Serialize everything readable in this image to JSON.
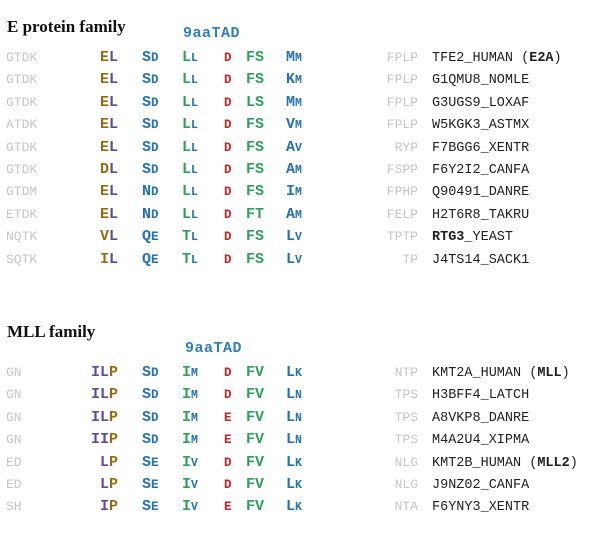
{
  "palette": {
    "gray": "#c6c6c6",
    "blue": "#2272b4",
    "green": "#2ea05a",
    "red": "#cc2222",
    "brown": "#9b6a0e",
    "purple": "#5f4a9e",
    "label_blue": "#2f7fbe",
    "name_black": "#1f1f1f"
  },
  "sections": [
    {
      "id": "e",
      "title": "E protein family",
      "tad_label": "9aaTAD",
      "rows": [
        {
          "flank_left": "GTDK",
          "pre": [
            [
              "E",
              "brown"
            ],
            [
              "L",
              "purple"
            ]
          ],
          "p12": "SD",
          "p34": "LL",
          "p5": "D",
          "p67": "FS",
          "p89": "MM",
          "flank_right": "FPLP",
          "name": [
            {
              "text": "TFE2_HUMAN (",
              "bold": false
            },
            {
              "text": "E2A",
              "bold": true
            },
            {
              "text": ")",
              "bold": false
            }
          ]
        },
        {
          "flank_left": "GTDK",
          "pre": [
            [
              "E",
              "brown"
            ],
            [
              "L",
              "purple"
            ]
          ],
          "p12": "SD",
          "p34": "LL",
          "p5": "D",
          "p67": "FS",
          "p89": "KM",
          "flank_right": "FPLP",
          "name": [
            {
              "text": "G1QMU8_NOMLE",
              "bold": false
            }
          ]
        },
        {
          "flank_left": "GTDK",
          "pre": [
            [
              "E",
              "brown"
            ],
            [
              "L",
              "purple"
            ]
          ],
          "p12": "SD",
          "p34": "LL",
          "p5": "D",
          "p67": "LS",
          "p89": "MM",
          "flank_right": "FPLP",
          "name": [
            {
              "text": "G3UGS9_LOXAF",
              "bold": false
            }
          ]
        },
        {
          "flank_left": "ATDK",
          "pre": [
            [
              "E",
              "brown"
            ],
            [
              "L",
              "purple"
            ]
          ],
          "p12": "SD",
          "p34": "LL",
          "p5": "D",
          "p67": "FS",
          "p89": "VM",
          "flank_right": "FPLP",
          "name": [
            {
              "text": "W5KGK3_ASTMX",
              "bold": false
            }
          ]
        },
        {
          "flank_left": "GTDK",
          "pre": [
            [
              "E",
              "brown"
            ],
            [
              "L",
              "purple"
            ]
          ],
          "p12": "SD",
          "p34": "LL",
          "p5": "D",
          "p67": "FS",
          "p89": "AV",
          "flank_right": "RYP",
          "name": [
            {
              "text": "F7BGG6_XENTR",
              "bold": false
            }
          ]
        },
        {
          "flank_left": "GTDK",
          "pre": [
            [
              "D",
              "brown"
            ],
            [
              "L",
              "purple"
            ]
          ],
          "p12": "SD",
          "p34": "LL",
          "p5": "D",
          "p67": "FS",
          "p89": "AM",
          "flank_right": "FSPP",
          "name": [
            {
              "text": "F6Y2I2_CANFA",
              "bold": false
            }
          ]
        },
        {
          "flank_left": "GTDM",
          "pre": [
            [
              "E",
              "brown"
            ],
            [
              "L",
              "purple"
            ]
          ],
          "p12": "ND",
          "p34": "LL",
          "p5": "D",
          "p67": "FS",
          "p89": "IM",
          "flank_right": "FPHP",
          "name": [
            {
              "text": "Q90491_DANRE",
              "bold": false
            }
          ]
        },
        {
          "flank_left": "ETDK",
          "pre": [
            [
              "E",
              "brown"
            ],
            [
              "L",
              "purple"
            ]
          ],
          "p12": "ND",
          "p34": "LL",
          "p5": "D",
          "p67": "FT",
          "p89": "AM",
          "flank_right": "FELP",
          "name": [
            {
              "text": "H2T6R8_TAKRU",
              "bold": false
            }
          ]
        },
        {
          "flank_left": "NQTK",
          "pre": [
            [
              "V",
              "brown"
            ],
            [
              "L",
              "purple"
            ]
          ],
          "p12": "QE",
          "p34": "TL",
          "p5": "D",
          "p67": "FS",
          "p89": "LV",
          "flank_right": "TPTP",
          "name": [
            {
              "text": "RTG3",
              "bold": true
            },
            {
              "text": "_YEAST",
              "bold": false
            }
          ]
        },
        {
          "flank_left": "SQTK",
          "pre": [
            [
              "I",
              "brown"
            ],
            [
              "L",
              "purple"
            ]
          ],
          "p12": "QE",
          "p34": "TL",
          "p5": "D",
          "p67": "FS",
          "p89": "LV",
          "flank_right": "TP",
          "name": [
            {
              "text": "J4TS14_SACK1",
              "bold": false
            }
          ]
        }
      ]
    },
    {
      "id": "mll",
      "title": "MLL family",
      "tad_label": "9aaTAD",
      "rows": [
        {
          "flank_left": "GN",
          "pre": [
            [
              "I",
              "purple"
            ],
            [
              "L",
              "purple"
            ],
            [
              "P",
              "brown"
            ]
          ],
          "p12": "SD",
          "p34": "IM",
          "p5": "D",
          "p67": "FV",
          "p89": "LK",
          "flank_right": "NTP",
          "name": [
            {
              "text": "KMT2A_HUMAN (",
              "bold": false
            },
            {
              "text": "MLL",
              "bold": true
            },
            {
              "text": ")",
              "bold": false
            }
          ]
        },
        {
          "flank_left": "GN",
          "pre": [
            [
              "I",
              "purple"
            ],
            [
              "L",
              "purple"
            ],
            [
              "P",
              "brown"
            ]
          ],
          "p12": "SD",
          "p34": "IM",
          "p5": "D",
          "p67": "FV",
          "p89": "LN",
          "flank_right": "TPS",
          "name": [
            {
              "text": "H3BFF4_LATCH",
              "bold": false
            }
          ]
        },
        {
          "flank_left": "GN",
          "pre": [
            [
              "I",
              "purple"
            ],
            [
              "L",
              "purple"
            ],
            [
              "P",
              "brown"
            ]
          ],
          "p12": "SD",
          "p34": "IM",
          "p5": "E",
          "p67": "FV",
          "p89": "LN",
          "flank_right": "TPS",
          "name": [
            {
              "text": "A8VKP8_DANRE",
              "bold": false
            }
          ]
        },
        {
          "flank_left": "GN",
          "pre": [
            [
              "I",
              "purple"
            ],
            [
              "I",
              "purple"
            ],
            [
              "P",
              "brown"
            ]
          ],
          "p12": "SD",
          "p34": "IM",
          "p5": "E",
          "p67": "FV",
          "p89": "LN",
          "flank_right": "TPS",
          "name": [
            {
              "text": "M4A2U4_XIPMA",
              "bold": false
            }
          ]
        },
        {
          "flank_left": "ED",
          "pre": [
            [
              "L",
              "purple"
            ],
            [
              "P",
              "brown"
            ]
          ],
          "p12": "SE",
          "p34": "IV",
          "p5": "D",
          "p67": "FV",
          "p89": "LK",
          "flank_right": "NLG",
          "name": [
            {
              "text": "KMT2B_HUMAN (",
              "bold": false
            },
            {
              "text": "MLL2",
              "bold": true
            },
            {
              "text": ")",
              "bold": false
            }
          ]
        },
        {
          "flank_left": "ED",
          "pre": [
            [
              "L",
              "purple"
            ],
            [
              "P",
              "brown"
            ]
          ],
          "p12": "SE",
          "p34": "IV",
          "p5": "D",
          "p67": "FV",
          "p89": "LK",
          "flank_right": "NLG",
          "name": [
            {
              "text": "J9NZ02_CANFA",
              "bold": false
            }
          ]
        },
        {
          "flank_left": "SH",
          "pre": [
            [
              "I",
              "purple"
            ],
            [
              "P",
              "brown"
            ]
          ],
          "p12": "SE",
          "p34": "IV",
          "p5": "E",
          "p67": "FV",
          "p89": "LK",
          "flank_right": "NTA",
          "name": [
            {
              "text": "F6YNY3_XENTR",
              "bold": false
            }
          ]
        }
      ]
    }
  ]
}
